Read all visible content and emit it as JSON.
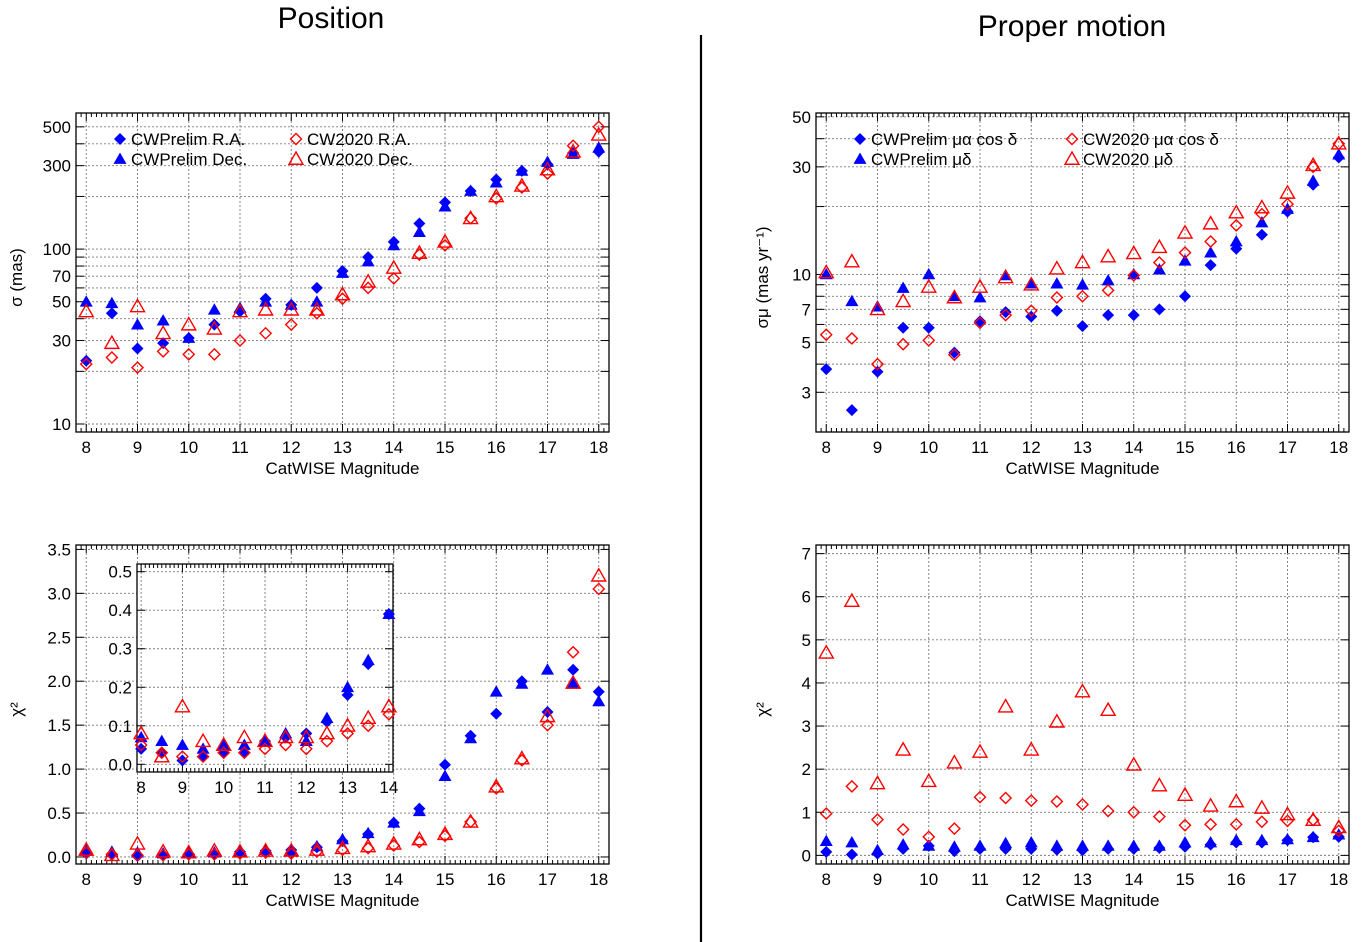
{
  "titles": {
    "left": "Position",
    "right": "Proper motion"
  },
  "colors": {
    "cwprelim": "#0000ff",
    "cw2020": "#ff0000"
  },
  "chart_data": [
    {
      "id": "pos_sigma",
      "type": "scatter",
      "xlabel": "CatWISE Magnitude",
      "ylabel": "σ (mas)",
      "xlim": [
        7.8,
        18.2
      ],
      "ylim": [
        9,
        600
      ],
      "yscale": "log",
      "legend": "top-left",
      "x": [
        8,
        8.5,
        9,
        9.5,
        10,
        10.5,
        11,
        11.5,
        12,
        12.5,
        13,
        13.5,
        14,
        14.5,
        15,
        15.5,
        16,
        16.5,
        17,
        17.5,
        18
      ],
      "series": [
        {
          "name": "CWPrelim R.A.",
          "marker": "diamond-filled",
          "color": "blue",
          "values": [
            23,
            43,
            27,
            29,
            31,
            37,
            44,
            52,
            48,
            60,
            75,
            90,
            110,
            140,
            185,
            215,
            250,
            280,
            305,
            355,
            360
          ]
        },
        {
          "name": "CWPrelim Dec.",
          "marker": "triangle-filled",
          "color": "blue",
          "values": [
            50,
            49,
            37,
            39,
            31,
            45,
            46,
            50,
            48,
            50,
            73,
            85,
            105,
            125,
            175,
            215,
            240,
            280,
            315,
            350,
            380
          ]
        },
        {
          "name": "CW2020 R.A.",
          "marker": "diamond-open",
          "color": "red",
          "values": [
            22,
            24,
            21,
            26,
            25,
            25,
            30,
            33,
            37,
            43,
            52,
            60,
            68,
            93,
            105,
            150,
            195,
            225,
            270,
            390,
            500
          ]
        },
        {
          "name": "CW2020 Dec.",
          "marker": "triangle-open",
          "color": "red",
          "values": [
            44,
            29,
            47,
            33,
            37,
            35,
            44,
            45,
            45,
            45,
            55,
            65,
            78,
            95,
            110,
            150,
            200,
            230,
            285,
            360,
            450
          ]
        }
      ]
    },
    {
      "id": "pos_chi2",
      "type": "scatter",
      "xlabel": "CatWISE Magnitude",
      "ylabel": "χ²",
      "xlim": [
        7.8,
        18.2
      ],
      "ylim": [
        -0.08,
        3.55
      ],
      "x": [
        8,
        8.5,
        9,
        9.5,
        10,
        10.5,
        11,
        11.5,
        12,
        12.5,
        13,
        13.5,
        14,
        14.5,
        15,
        15.5,
        16,
        16.5,
        17,
        17.5,
        18
      ],
      "series": [
        {
          "name": "CWPrelim R.A.",
          "marker": "diamond-filled",
          "color": "blue",
          "values": [
            0.04,
            0.03,
            0.01,
            0.02,
            0.03,
            0.03,
            0.06,
            0.07,
            0.08,
            0.11,
            0.18,
            0.26,
            0.39,
            0.55,
            1.05,
            1.38,
            1.63,
            2.0,
            1.65,
            2.13,
            1.88
          ]
        },
        {
          "name": "CWPrelim Dec.",
          "marker": "triangle-filled",
          "color": "blue",
          "values": [
            0.07,
            0.06,
            0.05,
            0.04,
            0.05,
            0.05,
            0.06,
            0.08,
            0.06,
            0.12,
            0.2,
            0.27,
            0.39,
            0.52,
            0.92,
            1.35,
            1.88,
            1.97,
            2.13,
            1.97,
            1.77
          ]
        },
        {
          "name": "CW2020 R.A.",
          "marker": "diamond-open",
          "color": "red",
          "values": [
            0.05,
            0.03,
            0.02,
            0.02,
            0.03,
            0.03,
            0.04,
            0.05,
            0.04,
            0.06,
            0.08,
            0.1,
            0.13,
            0.17,
            0.24,
            0.4,
            0.78,
            1.1,
            1.5,
            2.33,
            3.05
          ]
        },
        {
          "name": "CW2020 Dec.",
          "marker": "triangle-open",
          "color": "red",
          "values": [
            0.08,
            0.02,
            0.15,
            0.06,
            0.05,
            0.07,
            0.06,
            0.07,
            0.07,
            0.08,
            0.1,
            0.12,
            0.15,
            0.2,
            0.26,
            0.4,
            0.8,
            1.12,
            1.6,
            1.98,
            3.2
          ]
        }
      ]
    },
    {
      "id": "pos_chi2_inset",
      "type": "scatter",
      "xlim": [
        7.9,
        14.1
      ],
      "ylim": [
        -0.02,
        0.52
      ],
      "x": [
        8,
        8.5,
        9,
        9.5,
        10,
        10.5,
        11,
        11.5,
        12,
        12.5,
        13,
        13.5,
        14
      ],
      "series": [
        {
          "name": "CWPrelim R.A.",
          "marker": "diamond-filled",
          "color": "blue",
          "values": [
            0.04,
            0.03,
            0.01,
            0.02,
            0.03,
            0.03,
            0.06,
            0.07,
            0.08,
            0.11,
            0.18,
            0.26,
            0.39
          ]
        },
        {
          "name": "CWPrelim Dec.",
          "marker": "triangle-filled",
          "color": "blue",
          "values": [
            0.07,
            0.06,
            0.05,
            0.04,
            0.05,
            0.05,
            0.06,
            0.08,
            0.06,
            0.12,
            0.2,
            0.27,
            0.39
          ]
        },
        {
          "name": "CW2020 R.A.",
          "marker": "diamond-open",
          "color": "red",
          "values": [
            0.05,
            0.03,
            0.02,
            0.02,
            0.03,
            0.03,
            0.04,
            0.05,
            0.04,
            0.06,
            0.08,
            0.1,
            0.13
          ]
        },
        {
          "name": "CW2020 Dec.",
          "marker": "triangle-open",
          "color": "red",
          "values": [
            0.08,
            0.02,
            0.15,
            0.06,
            0.05,
            0.07,
            0.06,
            0.07,
            0.07,
            0.08,
            0.1,
            0.12,
            0.15
          ]
        }
      ]
    },
    {
      "id": "pm_sigma",
      "type": "scatter",
      "xlabel": "CatWISE Magnitude",
      "ylabel": "σμ (mas yr⁻¹)",
      "xlim": [
        7.8,
        18.2
      ],
      "ylim": [
        2,
        52
      ],
      "yscale": "log",
      "legend": "top-left",
      "x": [
        8,
        8.5,
        9,
        9.5,
        10,
        10.5,
        11,
        11.5,
        12,
        12.5,
        13,
        13.5,
        14,
        14.5,
        15,
        15.5,
        16,
        16.5,
        17,
        17.5,
        18
      ],
      "series": [
        {
          "name": "CWPrelim μα cos δ",
          "marker": "diamond-filled",
          "color": "blue",
          "values": [
            3.8,
            2.5,
            3.7,
            5.8,
            5.8,
            4.5,
            6.2,
            6.8,
            6.5,
            6.9,
            5.9,
            6.6,
            6.6,
            7.0,
            8.0,
            11,
            13,
            15,
            19,
            25,
            33
          ]
        },
        {
          "name": "CWPrelim μδ",
          "marker": "triangle-filled",
          "color": "blue",
          "values": [
            10,
            7.6,
            7.2,
            8.7,
            10,
            8.0,
            7.9,
            9.9,
            9.1,
            9.1,
            9.0,
            9.4,
            10,
            10.5,
            11.5,
            12.5,
            14,
            17,
            19.5,
            26,
            34
          ]
        },
        {
          "name": "CW2020 μα cos δ",
          "marker": "diamond-open",
          "color": "red",
          "values": [
            5.4,
            5.2,
            4.0,
            4.9,
            5.1,
            4.4,
            6.1,
            6.6,
            6.9,
            7.9,
            8.0,
            8.5,
            9.9,
            11.3,
            12.5,
            14,
            16.5,
            18.5,
            20.5,
            30,
            38
          ]
        },
        {
          "name": "CW2020 μδ",
          "marker": "triangle-open",
          "color": "red",
          "values": [
            10.2,
            11.4,
            7.0,
            7.6,
            8.8,
            7.9,
            8.8,
            9.7,
            9.0,
            10.6,
            11.3,
            12,
            12.4,
            13.2,
            15.3,
            16.8,
            18.8,
            19.8,
            23,
            30.5,
            38
          ]
        }
      ]
    },
    {
      "id": "pm_chi2",
      "type": "scatter",
      "xlabel": "CatWISE Magnitude",
      "ylabel": "χ²",
      "xlim": [
        7.8,
        18.2
      ],
      "ylim": [
        -0.2,
        7.2
      ],
      "x": [
        8,
        8.5,
        9,
        9.5,
        10,
        10.5,
        11,
        11.5,
        12,
        12.5,
        13,
        13.5,
        14,
        14.5,
        15,
        15.5,
        16,
        16.5,
        17,
        17.5,
        18
      ],
      "series": [
        {
          "name": "CWPrelim μα cos δ",
          "marker": "diamond-filled",
          "color": "blue",
          "values": [
            0.08,
            0.02,
            0.04,
            0.15,
            0.22,
            0.1,
            0.15,
            0.15,
            0.15,
            0.13,
            0.12,
            0.15,
            0.15,
            0.17,
            0.2,
            0.25,
            0.3,
            0.3,
            0.35,
            0.42,
            0.43
          ]
        },
        {
          "name": "CWPrelim μδ",
          "marker": "triangle-filled",
          "color": "blue",
          "values": [
            0.33,
            0.3,
            0.12,
            0.25,
            0.22,
            0.2,
            0.22,
            0.28,
            0.3,
            0.22,
            0.22,
            0.22,
            0.22,
            0.22,
            0.3,
            0.3,
            0.35,
            0.35,
            0.37,
            0.42,
            0.48
          ]
        },
        {
          "name": "CW2020 μα cos δ",
          "marker": "diamond-open",
          "color": "red",
          "values": [
            0.97,
            1.6,
            0.83,
            0.6,
            0.43,
            0.62,
            1.35,
            1.33,
            1.27,
            1.25,
            1.18,
            1.03,
            1.0,
            0.9,
            0.7,
            0.72,
            0.72,
            0.78,
            0.8,
            0.82,
            0.57
          ]
        },
        {
          "name": "CW2020 μδ",
          "marker": "triangle-open",
          "color": "red",
          "values": [
            4.7,
            5.9,
            1.67,
            2.45,
            1.72,
            2.15,
            2.4,
            3.45,
            2.45,
            3.1,
            3.8,
            3.37,
            2.1,
            1.62,
            1.4,
            1.15,
            1.25,
            1.1,
            0.95,
            0.82,
            0.65
          ]
        }
      ]
    }
  ]
}
